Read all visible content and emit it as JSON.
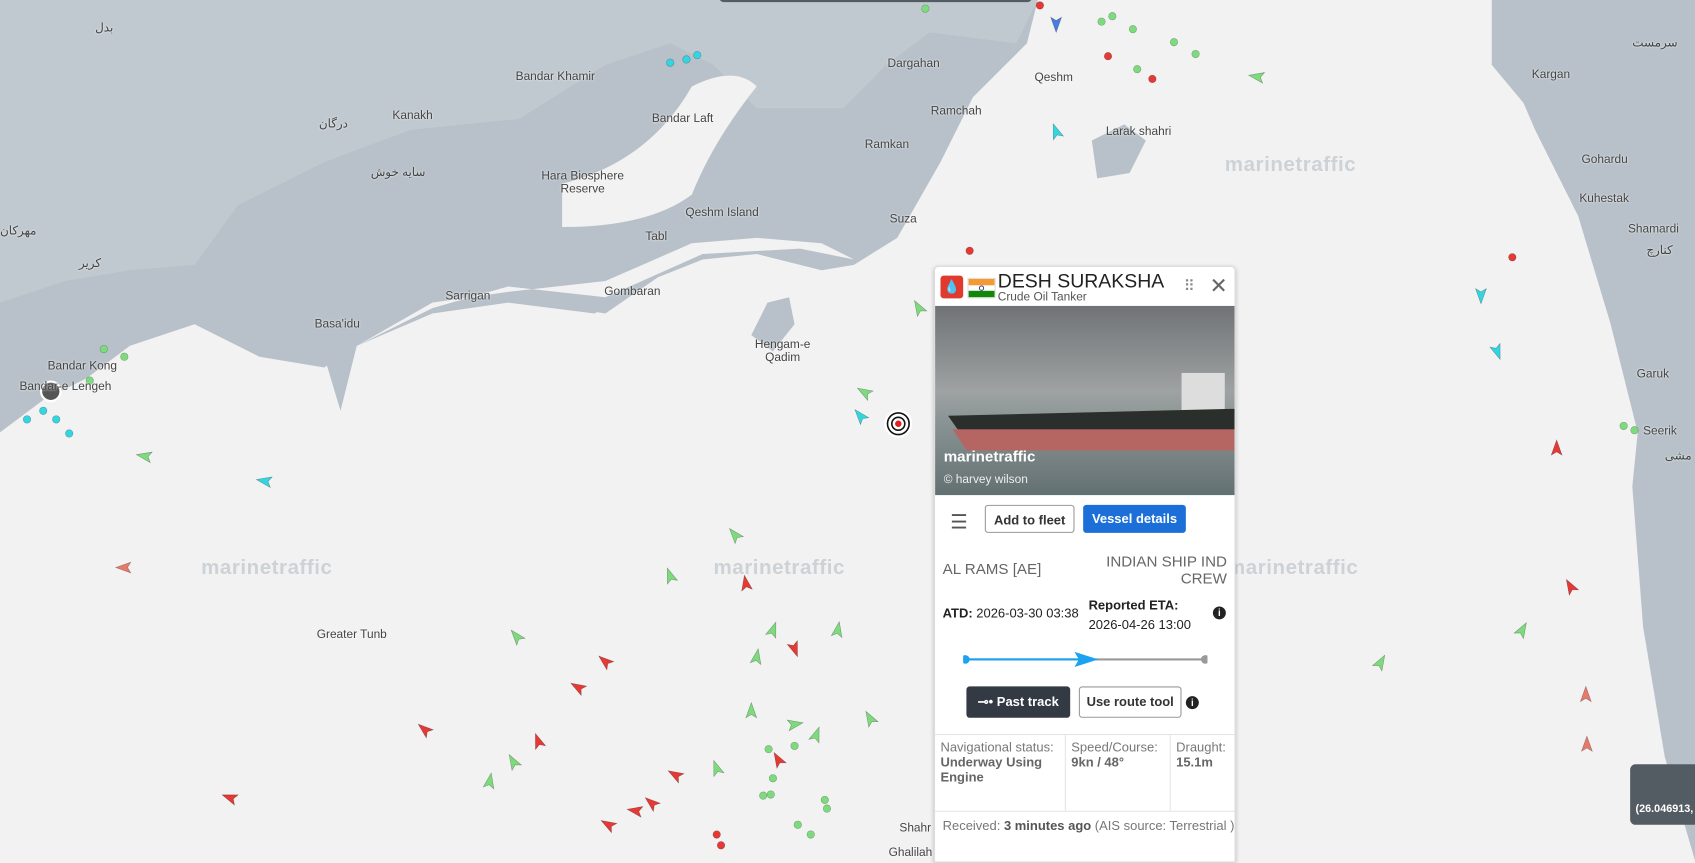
{
  "map": {
    "land_color": "#b8c1c9",
    "sea_color": "#f2f2f2",
    "watermark": "marinetraffic",
    "places": [
      {
        "label": "Bandar Khamir"
      },
      {
        "label": "Dargahan"
      },
      {
        "label": "Qeshm"
      },
      {
        "label": "Kargan"
      },
      {
        "label": "Kanakh"
      },
      {
        "label": "Bandar Laft"
      },
      {
        "label": "Ramchah"
      },
      {
        "label": "Ramkan"
      },
      {
        "label": "Larak shahri"
      },
      {
        "label": "Hara Biosphere Reserve"
      },
      {
        "label": "Qeshm Island"
      },
      {
        "label": "Tabl"
      },
      {
        "label": "Suza"
      },
      {
        "label": "Gohardu"
      },
      {
        "label": "Kuhestak"
      },
      {
        "label": "Shamardi"
      },
      {
        "label": "Sarrigan"
      },
      {
        "label": "Gombaran"
      },
      {
        "label": "Basa'idu"
      },
      {
        "label": "Hengam-e Qadim"
      },
      {
        "label": "Bandar Kong"
      },
      {
        "label": "Bandar-e Lengeh"
      },
      {
        "label": "Garuk"
      },
      {
        "label": "Seerik"
      },
      {
        "label": "Greater Tunb"
      },
      {
        "label": "Shahr"
      },
      {
        "label": "Ghalilah"
      },
      {
        "label": "بدل"
      },
      {
        "label": "درگان"
      },
      {
        "label": "سایه خوش"
      },
      {
        "label": "مهرکان"
      },
      {
        "label": "کریر"
      },
      {
        "label": "سرمست"
      },
      {
        "label": "کنارچ"
      },
      {
        "label": "مشی"
      }
    ],
    "coordinate_readout": "(26.046913,"
  },
  "popup": {
    "vessel_name": "DESH SURAKSHA",
    "vessel_type": "Crude Oil Tanker",
    "flag": "India",
    "photo_watermark": "marinetraffic",
    "photo_credit": "© harvey wilson",
    "add_to_fleet": "Add to fleet",
    "vessel_details": "Vessel details",
    "from_port": "AL RAMS [AE]",
    "to_port": "INDIAN SHIP IND CREW",
    "atd_label": "ATD:",
    "atd_value": "2026-03-30 03:38",
    "eta_label": "Reported ETA:",
    "eta_value": "2026-04-26 13:00",
    "progress": 0.5,
    "past_track": "Past track",
    "route_tool": "Use route tool",
    "nav_status_label": "Navigational status:",
    "nav_status_value": "Underway Using Engine",
    "speed_label": "Speed/Course:",
    "speed_value": "9kn / 48°",
    "draught_label": "Draught:",
    "draught_value": "15.1m",
    "received_label": "Received:",
    "received_value": "3 minutes ago",
    "ais_source": "(AIS source: Terrestrial )",
    "accent": "#1c6fd8",
    "track_color": "#1aa3f0"
  }
}
